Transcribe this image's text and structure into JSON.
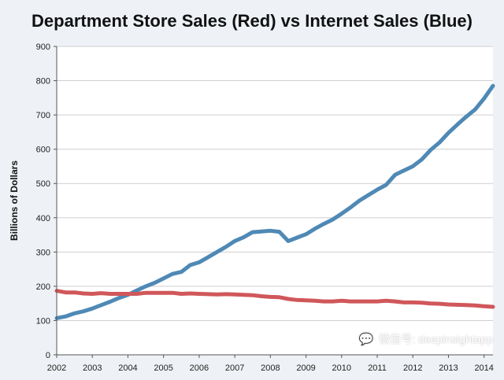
{
  "chart_data": {
    "type": "line",
    "title": "Department Store Sales (Red) vs Internet Sales (Blue)",
    "xlabel": "",
    "ylabel": "Billions of Dollars",
    "xlim": [
      2002,
      2014.25
    ],
    "ylim": [
      0,
      900
    ],
    "x_ticks": [
      2002,
      2003,
      2004,
      2005,
      2006,
      2007,
      2008,
      2009,
      2010,
      2011,
      2012,
      2013,
      2014
    ],
    "y_ticks": [
      0,
      100,
      200,
      300,
      400,
      500,
      600,
      700,
      800,
      900
    ],
    "grid": "horizontal",
    "series": [
      {
        "name": "Internet Sales (Blue)",
        "color": "#4f89b5",
        "x": [
          2002.0,
          2002.25,
          2002.5,
          2002.75,
          2003.0,
          2003.25,
          2003.5,
          2003.75,
          2004.0,
          2004.25,
          2004.5,
          2004.75,
          2005.0,
          2005.25,
          2005.5,
          2005.75,
          2006.0,
          2006.25,
          2006.5,
          2006.75,
          2007.0,
          2007.25,
          2007.5,
          2007.75,
          2008.0,
          2008.25,
          2008.5,
          2008.75,
          2009.0,
          2009.25,
          2009.5,
          2009.75,
          2010.0,
          2010.25,
          2010.5,
          2010.75,
          2011.0,
          2011.25,
          2011.5,
          2011.75,
          2012.0,
          2012.25,
          2012.5,
          2012.75,
          2013.0,
          2013.25,
          2013.5,
          2013.75,
          2014.0,
          2014.25
        ],
        "y": [
          107,
          112,
          121,
          127,
          135,
          145,
          155,
          166,
          175,
          188,
          200,
          210,
          223,
          236,
          242,
          262,
          270,
          285,
          300,
          315,
          332,
          343,
          358,
          360,
          362,
          359,
          332,
          342,
          352,
          368,
          382,
          395,
          412,
          430,
          450,
          466,
          482,
          496,
          525,
          538,
          550,
          570,
          598,
          620,
          648,
          672,
          695,
          716,
          748,
          785
        ]
      },
      {
        "name": "Department Store Sales (Red)",
        "color": "#d0575a",
        "x": [
          2002.0,
          2002.25,
          2002.5,
          2002.75,
          2003.0,
          2003.25,
          2003.5,
          2003.75,
          2004.0,
          2004.25,
          2004.5,
          2004.75,
          2005.0,
          2005.25,
          2005.5,
          2005.75,
          2006.0,
          2006.25,
          2006.5,
          2006.75,
          2007.0,
          2007.25,
          2007.5,
          2007.75,
          2008.0,
          2008.25,
          2008.5,
          2008.75,
          2009.0,
          2009.25,
          2009.5,
          2009.75,
          2010.0,
          2010.25,
          2010.5,
          2010.75,
          2011.0,
          2011.25,
          2011.5,
          2011.75,
          2012.0,
          2012.25,
          2012.5,
          2012.75,
          2013.0,
          2013.25,
          2013.5,
          2013.75,
          2014.0,
          2014.25
        ],
        "y": [
          187,
          182,
          182,
          179,
          178,
          180,
          178,
          178,
          178,
          178,
          181,
          181,
          181,
          181,
          178,
          179,
          178,
          177,
          176,
          177,
          176,
          175,
          174,
          171,
          169,
          168,
          163,
          160,
          159,
          158,
          156,
          156,
          158,
          156,
          156,
          156,
          156,
          158,
          156,
          153,
          153,
          152,
          150,
          149,
          147,
          146,
          145,
          144,
          142,
          140
        ]
      }
    ]
  },
  "watermark": {
    "icon": "wechat-icon",
    "text": "微信号: deepinsightapp"
  }
}
